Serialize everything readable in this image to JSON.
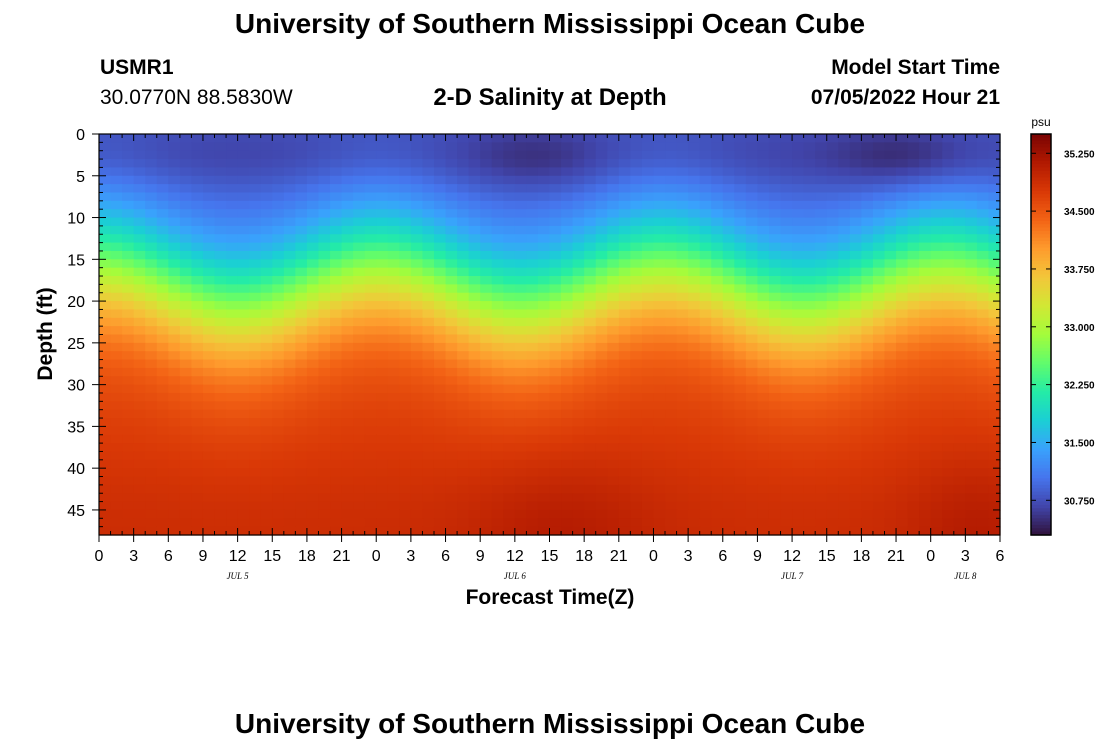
{
  "header": {
    "title": "University of Southern Mississippi Ocean Cube",
    "station_id": "USMR1",
    "coordinates": "30.0770N  88.5830W",
    "chart_title": "2-D Salinity at Depth",
    "model_label": "Model Start Time",
    "model_time": "07/05/2022 Hour 21"
  },
  "footer": {
    "title": "University of Southern Mississippi Ocean Cube"
  },
  "chart_data": {
    "type": "heatmap",
    "title": "2-D Salinity at Depth",
    "xlabel": "Forecast Time(Z)",
    "ylabel": "Depth (ft)",
    "x_range_hours": [
      0,
      78
    ],
    "x_tick_hours": [
      0,
      3,
      6,
      9,
      12,
      15,
      18,
      21,
      24,
      27,
      30,
      33,
      36,
      39,
      42,
      45,
      48,
      51,
      54,
      57,
      60,
      63,
      66,
      69,
      72,
      75,
      78
    ],
    "x_tick_labels": [
      "0",
      "3",
      "6",
      "9",
      "12",
      "15",
      "18",
      "21",
      "0",
      "3",
      "6",
      "9",
      "12",
      "15",
      "18",
      "21",
      "0",
      "3",
      "6",
      "9",
      "12",
      "15",
      "18",
      "21",
      "0",
      "3",
      "6"
    ],
    "date_labels": [
      {
        "label": "JUL 5",
        "hour": 12
      },
      {
        "label": "JUL 6",
        "hour": 36
      },
      {
        "label": "JUL 7",
        "hour": 60
      },
      {
        "label": "JUL 8",
        "hour": 75
      }
    ],
    "y_range_ft": [
      0,
      48
    ],
    "y_ticks": [
      0,
      5,
      10,
      15,
      20,
      25,
      30,
      35,
      40,
      45
    ],
    "colorbar": {
      "unit": "psu",
      "min": 30.3,
      "max": 35.5,
      "ticks": [
        30.75,
        31.5,
        32.25,
        33.0,
        33.75,
        34.5,
        35.25
      ],
      "tick_labels": [
        "30.750",
        "31.500",
        "32.250",
        "33.000",
        "33.750",
        "34.500",
        "35.250"
      ],
      "palette": [
        "#30123b",
        "#4145ab",
        "#4675ed",
        "#39a2fc",
        "#1bcfd4",
        "#24eca6",
        "#61fc6c",
        "#a4fc3b",
        "#d1e834",
        "#f3c63a",
        "#fe9b2d",
        "#f36315",
        "#d93806",
        "#b11901",
        "#7a0403"
      ]
    },
    "grid": {
      "cols": 78,
      "rows": 48
    },
    "description_values": {
      "surface_min_psu": 30.4,
      "bottom_max_psu": 35.4,
      "halocline_depth_ft_range": [
        12,
        28
      ]
    }
  }
}
